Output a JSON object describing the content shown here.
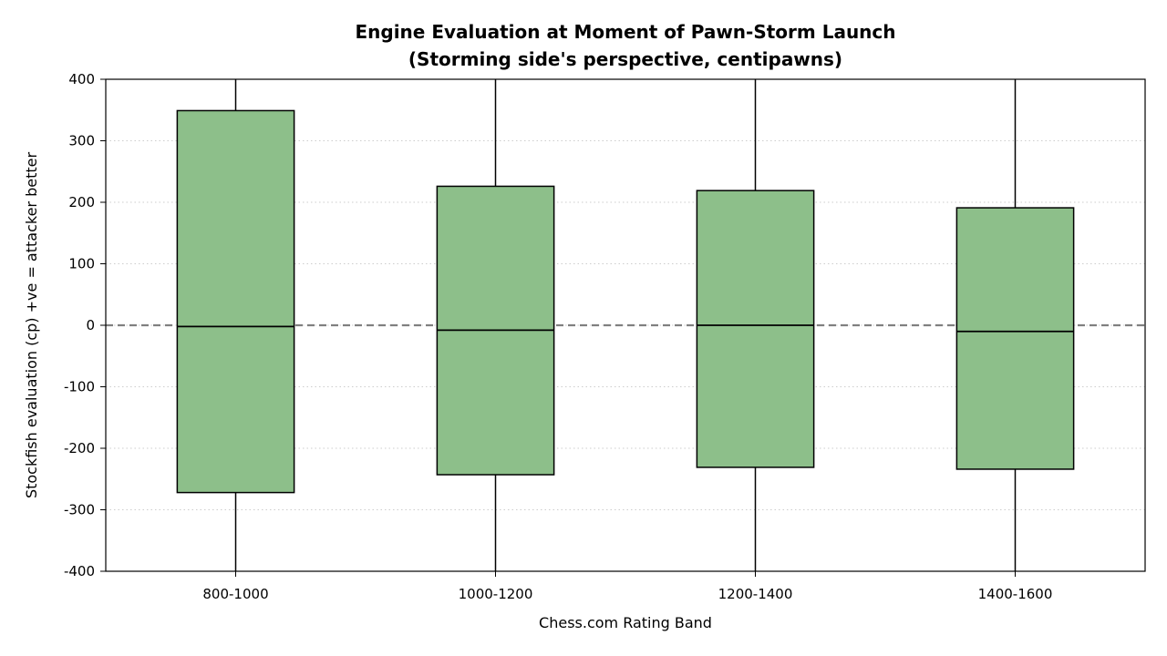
{
  "chart_data": {
    "type": "box",
    "title": "Engine Evaluation at Moment of Pawn-Storm Launch",
    "subtitle": "(Storming side's perspective, centipawns)",
    "xlabel": "Chess.com Rating Band",
    "ylabel": "Stockfish evaluation (cp)  +ve = attacker better",
    "ylim": [
      -400,
      400
    ],
    "yticks": [
      400,
      300,
      200,
      100,
      0,
      -100,
      -200,
      -300,
      -400
    ],
    "ytick_labels": [
      "400",
      "300",
      "200",
      "100",
      "0",
      "-100",
      "-200",
      "-300",
      "-400"
    ],
    "grid": "y-dotted",
    "reference_line": 0,
    "categories": [
      "800-1000",
      "1000-1200",
      "1200-1400",
      "1400-1600"
    ],
    "boxes": [
      {
        "category": "800-1000",
        "whisker_low": -400,
        "q1": -272,
        "median": -2,
        "q3": 349,
        "whisker_high": 400
      },
      {
        "category": "1000-1200",
        "whisker_low": -400,
        "q1": -243,
        "median": -8,
        "q3": 226,
        "whisker_high": 400
      },
      {
        "category": "1200-1400",
        "whisker_low": -400,
        "q1": -231,
        "median": 0,
        "q3": 219,
        "whisker_high": 400
      },
      {
        "category": "1400-1600",
        "whisker_low": -400,
        "q1": -234,
        "median": -10,
        "q3": 191,
        "whisker_high": 400
      }
    ],
    "colors": {
      "box_fill": "#8dbf8a",
      "box_edge": "#000000",
      "reference": "#808080",
      "grid": "#cccccc"
    }
  }
}
